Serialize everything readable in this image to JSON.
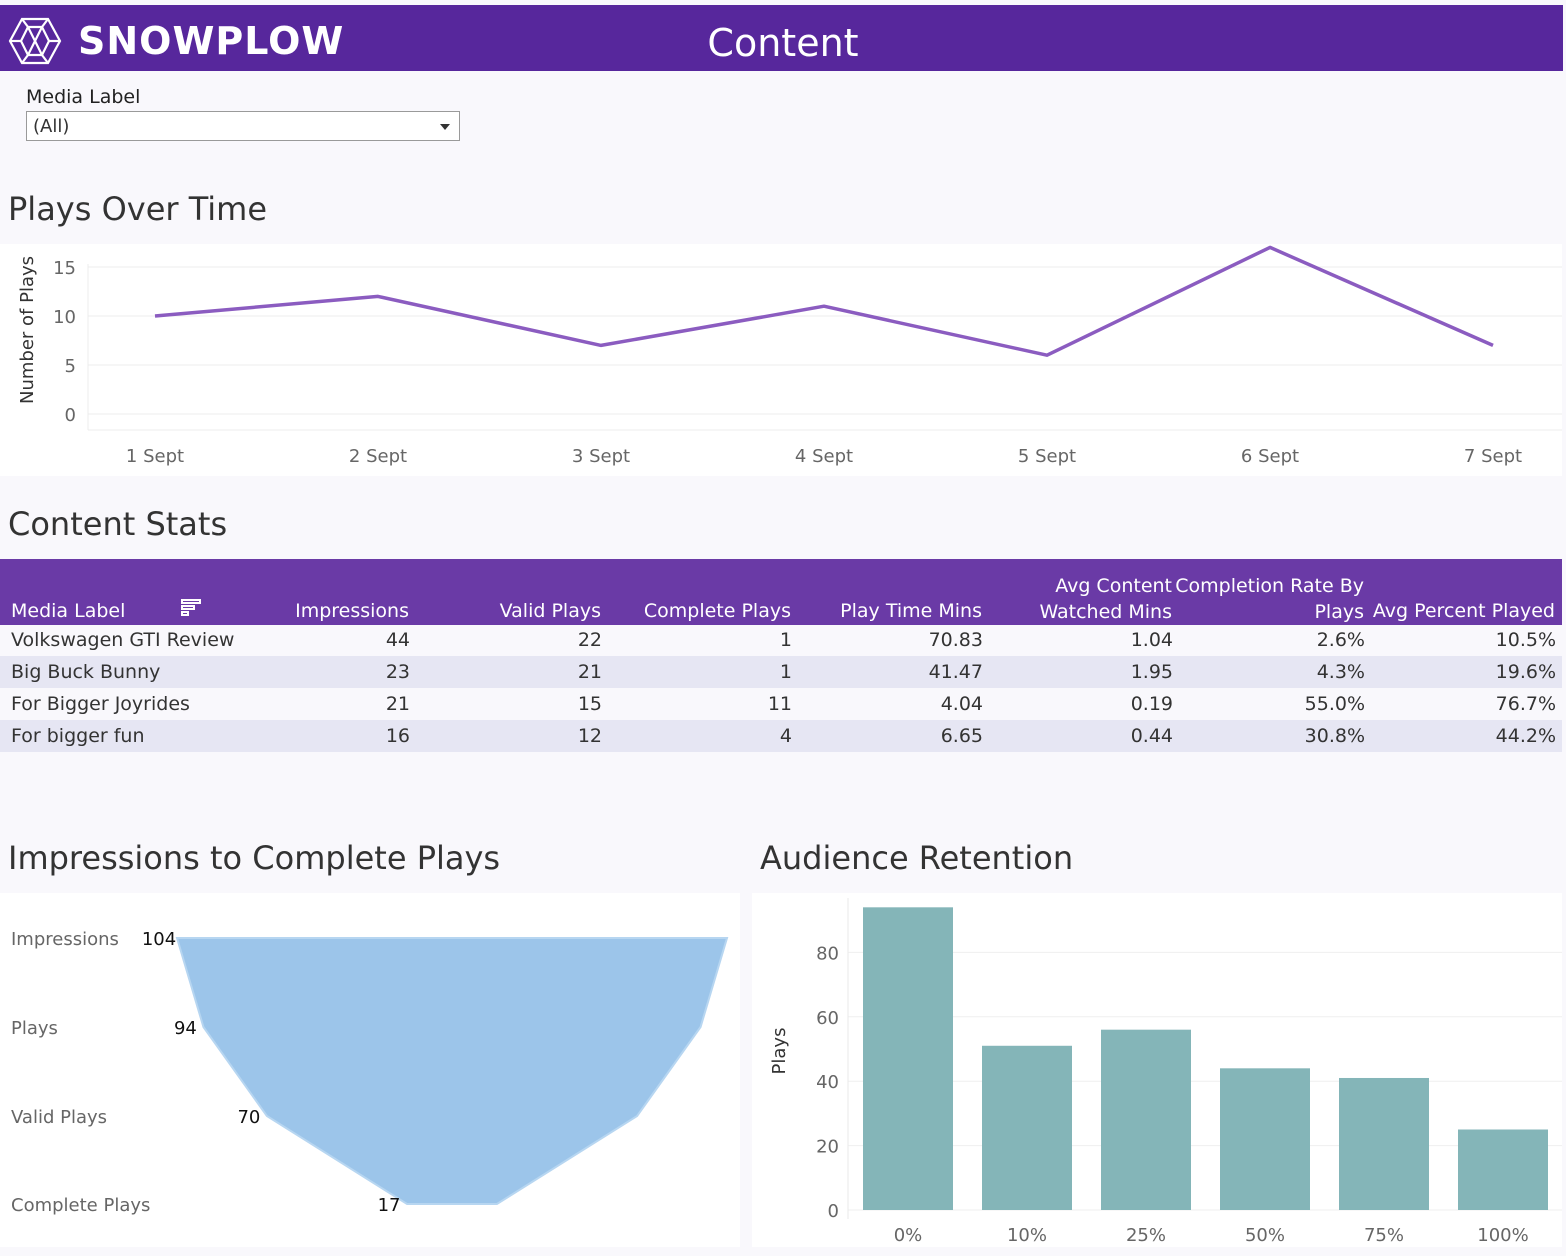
{
  "header": {
    "brand": "SNOWPLOW",
    "title": "Content",
    "header_color": "#57279c"
  },
  "filter": {
    "label": "Media Label",
    "value": "(All)"
  },
  "sections": {
    "plots_over_time": "Plays Over Time",
    "content_stats": "Content Stats",
    "funnel": "Impressions to Complete Plays",
    "retention": "Audience Retention"
  },
  "chart_data": [
    {
      "type": "line",
      "title": "Plays Over Time",
      "xlabel": "",
      "ylabel": "Number of Plays",
      "x": [
        "1 Sept",
        "2 Sept",
        "3 Sept",
        "4 Sept",
        "5 Sept",
        "6 Sept",
        "7 Sept"
      ],
      "y": [
        10,
        12,
        7,
        11,
        6,
        17,
        7
      ],
      "yticks": [
        0,
        5,
        10,
        15
      ],
      "ylim": [
        0,
        18
      ],
      "color": "#8b5cc0"
    },
    {
      "type": "bar",
      "subtype": "funnel",
      "title": "Impressions to Complete Plays",
      "categories": [
        "Impressions",
        "Plays",
        "Valid Plays",
        "Complete Plays"
      ],
      "values": [
        104,
        94,
        70,
        17
      ],
      "color": "#9cc5ea"
    },
    {
      "type": "bar",
      "title": "Audience Retention",
      "ylabel": "Plays",
      "categories": [
        "0%",
        "10%",
        "25%",
        "50%",
        "75%",
        "100%"
      ],
      "values": [
        94,
        51,
        56,
        44,
        41,
        25
      ],
      "yticks": [
        0,
        20,
        40,
        60,
        80
      ],
      "ylim": [
        0,
        94
      ],
      "color": "#84b5b8"
    }
  ],
  "table": {
    "header_color": "#6a3aa6",
    "columns": [
      {
        "line1": "",
        "line2": "Media Label"
      },
      {
        "line1": "",
        "line2": "Impressions"
      },
      {
        "line1": "",
        "line2": "Valid Plays"
      },
      {
        "line1": "",
        "line2": "Complete Plays"
      },
      {
        "line1": "",
        "line2": "Play Time Mins"
      },
      {
        "line1": "Avg Content",
        "line2": "Watched Mins"
      },
      {
        "line1": "Completion Rate By",
        "line2": "Plays"
      },
      {
        "line1": "",
        "line2": "Avg Percent Played"
      }
    ],
    "sort_icon": "sort-icon",
    "rows": [
      [
        "Volkswagen GTI Review",
        "44",
        "22",
        "1",
        "70.83",
        "1.04",
        "2.6%",
        "10.5%"
      ],
      [
        "Big Buck Bunny",
        "23",
        "21",
        "1",
        "41.47",
        "1.95",
        "4.3%",
        "19.6%"
      ],
      [
        "For Bigger Joyrides",
        "21",
        "15",
        "11",
        "4.04",
        "0.19",
        "55.0%",
        "76.7%"
      ],
      [
        "For bigger fun",
        "16",
        "12",
        "4",
        "6.65",
        "0.44",
        "30.8%",
        "44.2%"
      ]
    ]
  }
}
